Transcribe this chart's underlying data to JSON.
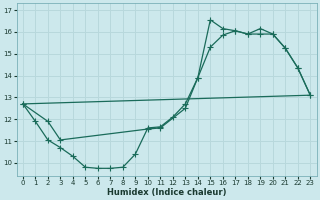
{
  "xlabel": "Humidex (Indice chaleur)",
  "bg_color": "#cce8ec",
  "grid_color": "#b8d8dc",
  "line_color": "#1a6b5a",
  "xlim": [
    -0.5,
    23.5
  ],
  "ylim": [
    9.4,
    17.3
  ],
  "xticks": [
    0,
    1,
    2,
    3,
    4,
    5,
    6,
    7,
    8,
    9,
    10,
    11,
    12,
    13,
    14,
    15,
    16,
    17,
    18,
    19,
    20,
    21,
    22,
    23
  ],
  "yticks": [
    10,
    11,
    12,
    13,
    14,
    15,
    16,
    17
  ],
  "line1_x": [
    0,
    1,
    2,
    3,
    4,
    5,
    6,
    7,
    8,
    9,
    10,
    11,
    12,
    13,
    14,
    15,
    16,
    17,
    18,
    19,
    20,
    21,
    22,
    23
  ],
  "line1_y": [
    12.7,
    11.9,
    11.05,
    10.7,
    10.3,
    9.8,
    9.75,
    9.75,
    9.8,
    10.4,
    11.6,
    11.65,
    12.1,
    12.7,
    13.9,
    15.3,
    15.85,
    16.05,
    15.9,
    15.9,
    15.9,
    15.25,
    14.35,
    13.1
  ],
  "line2_x": [
    0,
    23
  ],
  "line2_y": [
    12.7,
    13.1
  ],
  "line3_x": [
    0,
    2,
    3,
    10,
    11,
    13,
    14,
    15,
    16,
    17,
    18,
    19,
    20,
    21,
    22,
    23
  ],
  "line3_y": [
    12.7,
    11.9,
    11.05,
    11.55,
    11.6,
    12.5,
    13.9,
    16.55,
    16.15,
    16.05,
    15.9,
    16.15,
    15.9,
    15.25,
    14.35,
    13.1
  ]
}
